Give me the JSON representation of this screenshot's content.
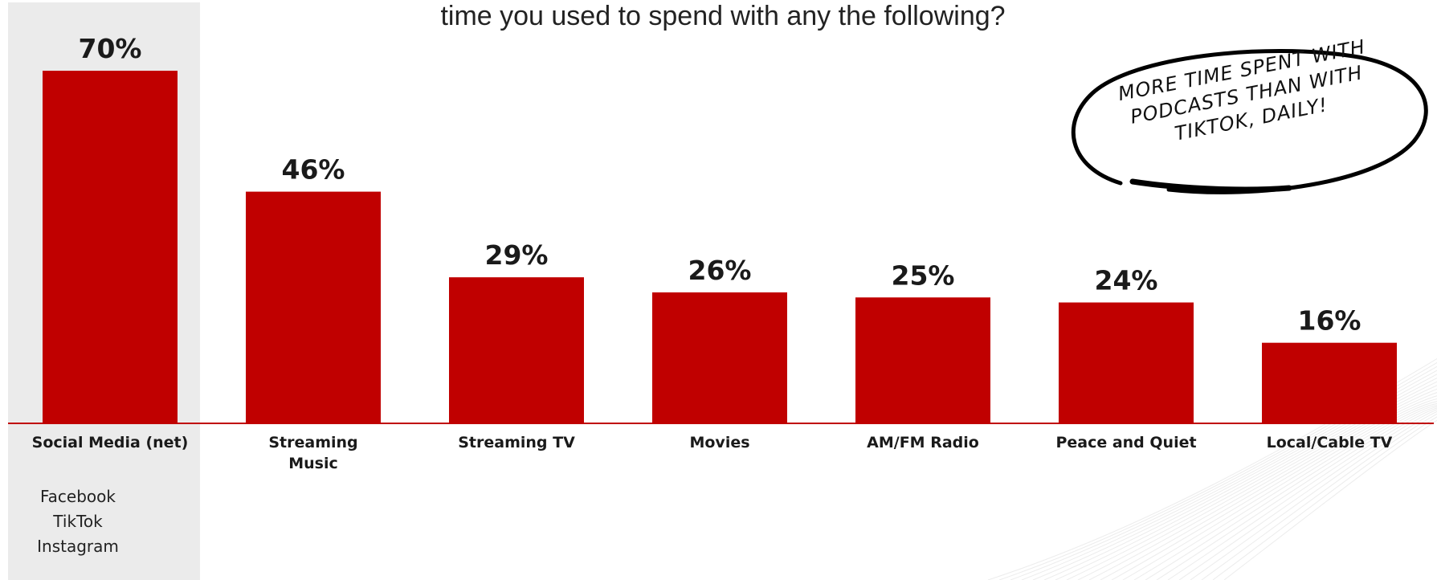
{
  "header": {
    "question": "time you used to spend with any the following?"
  },
  "callout": {
    "text": "MORE TIME SPENT WITH PODCASTS THAN WITH TIKTOK, DAILY!"
  },
  "colors": {
    "bar": "#c00000",
    "baseline": "#c00000",
    "highlight": "#ebebeb"
  },
  "chart_data": {
    "type": "bar",
    "title": "",
    "xlabel": "",
    "ylabel": "",
    "ylim": [
      0,
      70
    ],
    "grid": false,
    "categories": [
      "Social Media (net)",
      "Streaming Music",
      "Streaming TV",
      "Movies",
      "AM/FM Radio",
      "Peace and Quiet",
      "Local/Cable TV"
    ],
    "category_label_lines": [
      [
        "Social Media (net)"
      ],
      [
        "Streaming",
        "Music"
      ],
      [
        "Streaming TV"
      ],
      [
        "Movies"
      ],
      [
        "AM/FM Radio"
      ],
      [
        "Peace and Quiet"
      ],
      [
        "Local/Cable TV"
      ]
    ],
    "values": [
      70,
      46,
      29,
      26,
      25,
      24,
      16
    ],
    "value_labels": [
      "70%",
      "46%",
      "29%",
      "26%",
      "25%",
      "24%",
      "16%"
    ],
    "highlighted_category": "Social Media (net)",
    "highlight_sublabels": [
      "Facebook",
      "TikTok",
      "Instagram"
    ]
  }
}
